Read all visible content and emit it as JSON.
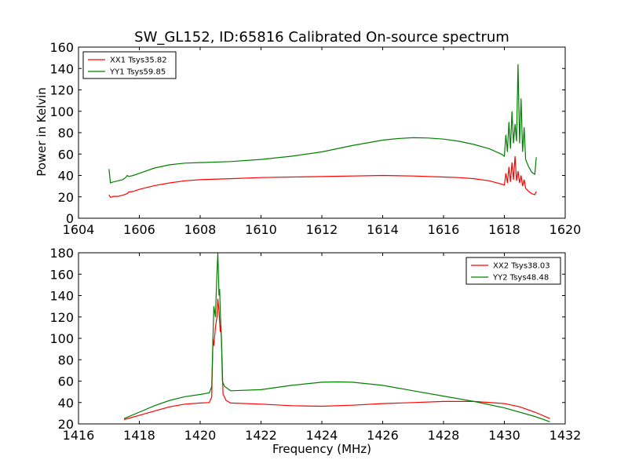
{
  "chart_data": [
    {
      "type": "line",
      "title": "SW_GL152, ID:65816 Calibrated On-source spectrum",
      "xlabel": "",
      "ylabel": "Power in Kelvin",
      "xlim": [
        1604,
        1620
      ],
      "ylim": [
        0,
        160
      ],
      "xticks": [
        1604,
        1606,
        1608,
        1610,
        1612,
        1614,
        1616,
        1618,
        1620
      ],
      "yticks": [
        0,
        20,
        40,
        60,
        80,
        100,
        120,
        140,
        160
      ],
      "legend_position": "top-left",
      "series": [
        {
          "name": "XX1 Tsys35.82",
          "color": "#ff0000",
          "points": [
            [
              1605.0,
              22
            ],
            [
              1605.05,
              19.5
            ],
            [
              1605.15,
              20.5
            ],
            [
              1605.3,
              20.5
            ],
            [
              1605.45,
              21.5
            ],
            [
              1605.6,
              23
            ],
            [
              1605.65,
              24.5
            ],
            [
              1605.8,
              25
            ],
            [
              1606.0,
              27
            ],
            [
              1606.5,
              30.5
            ],
            [
              1607.0,
              33
            ],
            [
              1607.5,
              35
            ],
            [
              1608.0,
              36
            ],
            [
              1609.0,
              37
            ],
            [
              1610.0,
              38
            ],
            [
              1611.0,
              38.5
            ],
            [
              1612.0,
              39
            ],
            [
              1613.0,
              39.5
            ],
            [
              1614.0,
              40
            ],
            [
              1615.0,
              39.5
            ],
            [
              1616.0,
              38.5
            ],
            [
              1616.5,
              38
            ],
            [
              1617.0,
              37
            ],
            [
              1617.5,
              35
            ],
            [
              1617.9,
              32
            ],
            [
              1618.0,
              31
            ],
            [
              1618.05,
              42
            ],
            [
              1618.1,
              33
            ],
            [
              1618.15,
              48
            ],
            [
              1618.2,
              34
            ],
            [
              1618.25,
              52
            ],
            [
              1618.3,
              36
            ],
            [
              1618.35,
              58
            ],
            [
              1618.4,
              35
            ],
            [
              1618.45,
              44
            ],
            [
              1618.5,
              33
            ],
            [
              1618.55,
              40
            ],
            [
              1618.6,
              30
            ],
            [
              1618.65,
              36
            ],
            [
              1618.7,
              28
            ],
            [
              1618.8,
              25
            ],
            [
              1618.9,
              23
            ],
            [
              1619.0,
              22
            ],
            [
              1619.05,
              25
            ]
          ]
        },
        {
          "name": "YY1 Tsys59.85",
          "color": "#008000",
          "points": [
            [
              1605.0,
              46
            ],
            [
              1605.05,
              33
            ],
            [
              1605.15,
              34
            ],
            [
              1605.3,
              35
            ],
            [
              1605.45,
              36
            ],
            [
              1605.55,
              38
            ],
            [
              1605.6,
              40
            ],
            [
              1605.65,
              39
            ],
            [
              1605.8,
              40
            ],
            [
              1606.0,
              42
            ],
            [
              1606.5,
              47
            ],
            [
              1607.0,
              50
            ],
            [
              1607.5,
              51.5
            ],
            [
              1608.0,
              52
            ],
            [
              1609.0,
              53
            ],
            [
              1610.0,
              55
            ],
            [
              1611.0,
              58
            ],
            [
              1612.0,
              62
            ],
            [
              1613.0,
              68
            ],
            [
              1614.0,
              73
            ],
            [
              1614.5,
              74.5
            ],
            [
              1615.0,
              75.3
            ],
            [
              1615.5,
              75
            ],
            [
              1616.0,
              74
            ],
            [
              1616.5,
              72
            ],
            [
              1617.0,
              69
            ],
            [
              1617.5,
              65
            ],
            [
              1617.9,
              60
            ],
            [
              1618.0,
              58
            ],
            [
              1618.05,
              78
            ],
            [
              1618.1,
              62
            ],
            [
              1618.15,
              90
            ],
            [
              1618.2,
              65
            ],
            [
              1618.25,
              100
            ],
            [
              1618.3,
              70
            ],
            [
              1618.35,
              88
            ],
            [
              1618.4,
              72
            ],
            [
              1618.45,
              144
            ],
            [
              1618.5,
              70
            ],
            [
              1618.55,
              112
            ],
            [
              1618.6,
              62
            ],
            [
              1618.65,
              85
            ],
            [
              1618.7,
              55
            ],
            [
              1618.8,
              48
            ],
            [
              1618.9,
              43
            ],
            [
              1619.0,
              41
            ],
            [
              1619.05,
              57
            ]
          ]
        }
      ]
    },
    {
      "type": "line",
      "title": "",
      "xlabel": "Frequency (MHz)",
      "ylabel": "",
      "xlim": [
        1416,
        1432
      ],
      "ylim": [
        20,
        180
      ],
      "xticks": [
        1416,
        1418,
        1420,
        1422,
        1424,
        1426,
        1428,
        1430,
        1432
      ],
      "yticks": [
        20,
        40,
        60,
        80,
        100,
        120,
        140,
        160,
        180
      ],
      "legend_position": "top-right",
      "series": [
        {
          "name": "XX2 Tsys38.03",
          "color": "#ff0000",
          "points": [
            [
              1417.5,
              24
            ],
            [
              1418.0,
              28
            ],
            [
              1418.5,
              32
            ],
            [
              1419.0,
              36
            ],
            [
              1419.5,
              38.5
            ],
            [
              1420.0,
              39.5
            ],
            [
              1420.3,
              40
            ],
            [
              1420.38,
              45
            ],
            [
              1420.42,
              100
            ],
            [
              1420.45,
              93
            ],
            [
              1420.5,
              110
            ],
            [
              1420.55,
              120
            ],
            [
              1420.58,
              137
            ],
            [
              1420.62,
              125
            ],
            [
              1420.66,
              106
            ],
            [
              1420.68,
              112
            ],
            [
              1420.72,
              80
            ],
            [
              1420.75,
              48
            ],
            [
              1420.85,
              42
            ],
            [
              1421.0,
              39.5
            ],
            [
              1422.0,
              38.5
            ],
            [
              1423.0,
              37
            ],
            [
              1424.0,
              36.5
            ],
            [
              1425.0,
              37.5
            ],
            [
              1426.0,
              39
            ],
            [
              1427.0,
              40
            ],
            [
              1428.0,
              41
            ],
            [
              1429.0,
              41
            ],
            [
              1430.0,
              39
            ],
            [
              1430.5,
              36
            ],
            [
              1431.0,
              31
            ],
            [
              1431.5,
              25
            ]
          ]
        },
        {
          "name": "YY2 Tsys48.48",
          "color": "#008000",
          "points": [
            [
              1417.5,
              25
            ],
            [
              1418.0,
              31
            ],
            [
              1418.5,
              37
            ],
            [
              1419.0,
              42
            ],
            [
              1419.5,
              45.5
            ],
            [
              1420.0,
              47.5
            ],
            [
              1420.3,
              49
            ],
            [
              1420.38,
              55
            ],
            [
              1420.42,
              100
            ],
            [
              1420.45,
              130
            ],
            [
              1420.5,
              120
            ],
            [
              1420.55,
              160
            ],
            [
              1420.58,
              180
            ],
            [
              1420.62,
              140
            ],
            [
              1420.64,
              146
            ],
            [
              1420.66,
              125
            ],
            [
              1420.7,
              100
            ],
            [
              1420.73,
              60
            ],
            [
              1420.8,
              55
            ],
            [
              1421.0,
              51
            ],
            [
              1422.0,
              52
            ],
            [
              1423.0,
              56
            ],
            [
              1424.0,
              59
            ],
            [
              1424.5,
              59.3
            ],
            [
              1425.0,
              59
            ],
            [
              1426.0,
              56
            ],
            [
              1427.0,
              51
            ],
            [
              1428.0,
              46
            ],
            [
              1429.0,
              41
            ],
            [
              1430.0,
              35
            ],
            [
              1431.0,
              27
            ],
            [
              1431.5,
              22
            ]
          ]
        }
      ]
    }
  ]
}
